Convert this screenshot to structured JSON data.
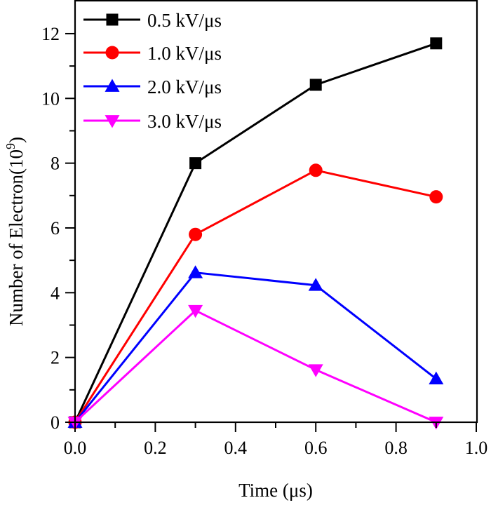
{
  "chart_data": {
    "type": "line",
    "title": "",
    "xlabel": "Time (μs)",
    "ylabel_main": "Number of Electron(10",
    "ylabel_sup": "9",
    "ylabel_close": ")",
    "xlim": [
      0.0,
      1.0
    ],
    "ylim": [
      0,
      13
    ],
    "x_major_ticks": [
      0.0,
      0.2,
      0.4,
      0.6,
      0.8,
      1.0
    ],
    "x_tick_labels": [
      "0.0",
      "0.2",
      "0.4",
      "0.6",
      "0.8",
      "1.0"
    ],
    "x_minor_ticks": [
      0.1,
      0.3,
      0.5,
      0.7,
      0.9
    ],
    "y_major_ticks": [
      0,
      2,
      4,
      6,
      8,
      10,
      12
    ],
    "y_tick_labels": [
      "0",
      "2",
      "4",
      "6",
      "8",
      "10",
      "12"
    ],
    "y_minor_ticks": [
      1,
      3,
      5,
      7,
      9,
      11
    ],
    "grid": false,
    "legend_position": "top-left",
    "x": [
      0.0,
      0.3,
      0.6,
      0.9
    ],
    "series": [
      {
        "name": "0.5 kV/μs",
        "color": "#000000",
        "marker": "square",
        "values": [
          0.0,
          8.0,
          10.42,
          11.7
        ]
      },
      {
        "name": "1.0 kV/μs",
        "color": "#ff0000",
        "marker": "circle",
        "values": [
          0.0,
          5.8,
          7.78,
          6.96
        ]
      },
      {
        "name": "2.0 kV/μs",
        "color": "#0000ff",
        "marker": "triangle-up",
        "values": [
          0.0,
          4.62,
          4.23,
          1.34
        ]
      },
      {
        "name": "3.0 kV/μs",
        "color": "#ff00ff",
        "marker": "triangle-down",
        "values": [
          0.0,
          3.45,
          1.62,
          0.0
        ]
      }
    ]
  }
}
